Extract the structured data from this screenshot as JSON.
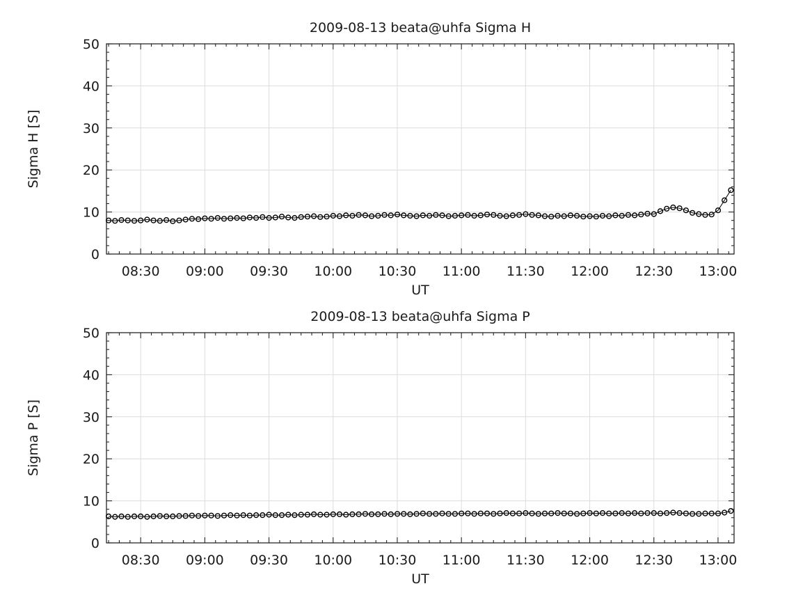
{
  "page": {
    "background": "#ffffff",
    "text_color": "#1a1a1a",
    "axis_color": "#262626",
    "grid_color": "#dcdcdc",
    "marker_color": "#000000"
  },
  "chart_data": [
    {
      "type": "line",
      "title": "2009-08-13  beata@uhfa Sigma H",
      "xlabel": "UT",
      "ylabel": "Sigma H [S]",
      "ylim": [
        0,
        50
      ],
      "yticks": [
        0,
        10,
        20,
        30,
        40,
        50
      ],
      "y_minor_step": 2,
      "xlim_minutes_of_day": [
        494,
        787.5
      ],
      "xtick_minutes": [
        510,
        540,
        570,
        600,
        630,
        660,
        690,
        720,
        750,
        780
      ],
      "xtick_labels": [
        "08:30",
        "09:00",
        "09:30",
        "10:00",
        "10:30",
        "11:00",
        "11:30",
        "12:00",
        "12:30",
        "13:00"
      ],
      "x_minor_step_min": 5,
      "grid": true,
      "legend": "none",
      "marker": "open-circle",
      "x_times": [
        "08:15",
        "08:18",
        "08:21",
        "08:24",
        "08:27",
        "08:30",
        "08:33",
        "08:36",
        "08:39",
        "08:42",
        "08:45",
        "08:48",
        "08:51",
        "08:54",
        "08:57",
        "09:00",
        "09:03",
        "09:06",
        "09:09",
        "09:12",
        "09:15",
        "09:18",
        "09:21",
        "09:24",
        "09:27",
        "09:30",
        "09:33",
        "09:36",
        "09:39",
        "09:42",
        "09:45",
        "09:48",
        "09:51",
        "09:54",
        "09:57",
        "10:00",
        "10:03",
        "10:06",
        "10:09",
        "10:12",
        "10:15",
        "10:18",
        "10:21",
        "10:24",
        "10:27",
        "10:30",
        "10:33",
        "10:36",
        "10:39",
        "10:42",
        "10:45",
        "10:48",
        "10:51",
        "10:54",
        "10:57",
        "11:00",
        "11:03",
        "11:06",
        "11:09",
        "11:12",
        "11:15",
        "11:18",
        "11:21",
        "11:24",
        "11:27",
        "11:30",
        "11:33",
        "11:36",
        "11:39",
        "11:42",
        "11:45",
        "11:48",
        "11:51",
        "11:54",
        "11:57",
        "12:00",
        "12:03",
        "12:06",
        "12:09",
        "12:12",
        "12:15",
        "12:18",
        "12:21",
        "12:24",
        "12:27",
        "12:30",
        "12:33",
        "12:36",
        "12:39",
        "12:42",
        "12:45",
        "12:48",
        "12:51",
        "12:54",
        "12:57",
        "13:00",
        "13:03",
        "13:06"
      ],
      "values": [
        8.0,
        7.9,
        8.1,
        8.0,
        7.9,
        8.0,
        8.2,
        8.0,
        7.9,
        8.1,
        7.8,
        8.0,
        8.2,
        8.4,
        8.3,
        8.5,
        8.4,
        8.6,
        8.4,
        8.5,
        8.6,
        8.5,
        8.7,
        8.6,
        8.8,
        8.6,
        8.7,
        8.9,
        8.7,
        8.6,
        8.8,
        8.9,
        9.0,
        8.8,
        8.9,
        9.1,
        9.0,
        9.2,
        9.1,
        9.3,
        9.2,
        9.0,
        9.1,
        9.3,
        9.2,
        9.4,
        9.2,
        9.1,
        9.0,
        9.2,
        9.1,
        9.3,
        9.2,
        9.0,
        9.1,
        9.2,
        9.3,
        9.1,
        9.2,
        9.4,
        9.3,
        9.1,
        9.0,
        9.2,
        9.3,
        9.5,
        9.3,
        9.2,
        9.0,
        8.9,
        9.1,
        9.0,
        9.2,
        9.1,
        8.9,
        9.0,
        8.9,
        9.1,
        9.0,
        9.2,
        9.1,
        9.3,
        9.2,
        9.4,
        9.6,
        9.5,
        10.2,
        10.8,
        11.1,
        10.9,
        10.4,
        9.8,
        9.5,
        9.3,
        9.4,
        10.4,
        12.8,
        15.2
      ]
    },
    {
      "type": "line",
      "title": "2009-08-13  beata@uhfa Sigma P",
      "xlabel": "UT",
      "ylabel": "Sigma P [S]",
      "ylim": [
        0,
        50
      ],
      "yticks": [
        0,
        10,
        20,
        30,
        40,
        50
      ],
      "y_minor_step": 2,
      "xlim_minutes_of_day": [
        494,
        787.5
      ],
      "xtick_minutes": [
        510,
        540,
        570,
        600,
        630,
        660,
        690,
        720,
        750,
        780
      ],
      "xtick_labels": [
        "08:30",
        "09:00",
        "09:30",
        "10:00",
        "10:30",
        "11:00",
        "11:30",
        "12:00",
        "12:30",
        "13:00"
      ],
      "x_minor_step_min": 5,
      "grid": true,
      "legend": "none",
      "marker": "open-circle",
      "x_times": [
        "08:15",
        "08:18",
        "08:21",
        "08:24",
        "08:27",
        "08:30",
        "08:33",
        "08:36",
        "08:39",
        "08:42",
        "08:45",
        "08:48",
        "08:51",
        "08:54",
        "08:57",
        "09:00",
        "09:03",
        "09:06",
        "09:09",
        "09:12",
        "09:15",
        "09:18",
        "09:21",
        "09:24",
        "09:27",
        "09:30",
        "09:33",
        "09:36",
        "09:39",
        "09:42",
        "09:45",
        "09:48",
        "09:51",
        "09:54",
        "09:57",
        "10:00",
        "10:03",
        "10:06",
        "10:09",
        "10:12",
        "10:15",
        "10:18",
        "10:21",
        "10:24",
        "10:27",
        "10:30",
        "10:33",
        "10:36",
        "10:39",
        "10:42",
        "10:45",
        "10:48",
        "10:51",
        "10:54",
        "10:57",
        "11:00",
        "11:03",
        "11:06",
        "11:09",
        "11:12",
        "11:15",
        "11:18",
        "11:21",
        "11:24",
        "11:27",
        "11:30",
        "11:33",
        "11:36",
        "11:39",
        "11:42",
        "11:45",
        "11:48",
        "11:51",
        "11:54",
        "11:57",
        "12:00",
        "12:03",
        "12:06",
        "12:09",
        "12:12",
        "12:15",
        "12:18",
        "12:21",
        "12:24",
        "12:27",
        "12:30",
        "12:33",
        "12:36",
        "12:39",
        "12:42",
        "12:45",
        "12:48",
        "12:51",
        "12:54",
        "12:57",
        "13:00",
        "13:03",
        "13:06"
      ],
      "values": [
        6.3,
        6.2,
        6.3,
        6.2,
        6.3,
        6.3,
        6.2,
        6.3,
        6.4,
        6.3,
        6.3,
        6.4,
        6.4,
        6.5,
        6.4,
        6.5,
        6.5,
        6.4,
        6.5,
        6.6,
        6.5,
        6.6,
        6.5,
        6.6,
        6.6,
        6.7,
        6.6,
        6.6,
        6.7,
        6.6,
        6.7,
        6.7,
        6.8,
        6.7,
        6.7,
        6.8,
        6.8,
        6.7,
        6.8,
        6.8,
        6.9,
        6.8,
        6.8,
        6.9,
        6.8,
        6.9,
        6.9,
        6.8,
        6.9,
        7.0,
        6.9,
        6.9,
        7.0,
        6.9,
        6.9,
        7.0,
        7.0,
        6.9,
        7.0,
        7.0,
        6.9,
        7.0,
        7.1,
        7.0,
        7.0,
        7.1,
        7.0,
        6.9,
        7.0,
        7.0,
        7.1,
        7.0,
        7.0,
        6.9,
        7.0,
        7.1,
        7.0,
        7.1,
        7.0,
        7.0,
        7.1,
        7.0,
        7.1,
        7.0,
        7.1,
        7.1,
        7.0,
        7.1,
        7.2,
        7.1,
        7.0,
        6.9,
        6.9,
        7.0,
        7.0,
        7.0,
        7.2,
        7.6
      ]
    }
  ]
}
